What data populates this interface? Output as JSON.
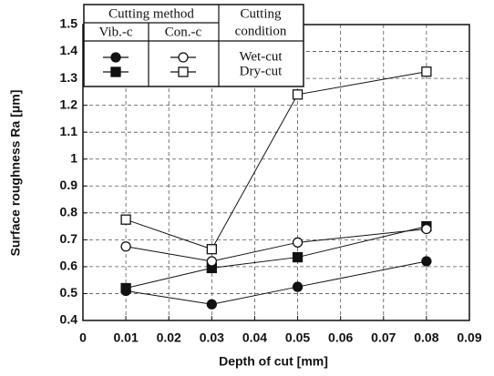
{
  "chart_data": {
    "type": "line",
    "x_label": "Depth of cut   [mm]",
    "y_label": "Surface roughness Ra   [μm]",
    "xlim": [
      0,
      0.09
    ],
    "xticks": [
      0,
      0.01,
      0.02,
      0.03,
      0.04,
      0.05,
      0.06,
      0.07,
      0.08,
      0.09
    ],
    "ylim": [
      0.4,
      1.5
    ],
    "yticks": [
      0.4,
      0.5,
      0.6,
      0.7,
      0.8,
      0.9,
      1,
      1.1,
      1.2,
      1.3,
      1.4,
      1.5
    ],
    "grid": true,
    "legend": {
      "method_header": "Cutting  method",
      "condition_header": [
        "Cutting",
        "condition"
      ],
      "methods": [
        "Vib.-c",
        "Con.-c"
      ],
      "conditions": [
        "Wet-cut",
        "Dry-cut"
      ]
    },
    "series": [
      {
        "color": "#111111",
        "marker": "circle",
        "filled": true,
        "x": [
          0.01,
          0.03,
          0.05,
          0.08
        ],
        "values": [
          0.51,
          0.46,
          0.525,
          0.62
        ]
      },
      {
        "color": "#111111",
        "marker": "square",
        "filled": true,
        "x": [
          0.01,
          0.03,
          0.05,
          0.08
        ],
        "values": [
          0.52,
          0.595,
          0.635,
          0.75
        ]
      },
      {
        "color": "#111111",
        "marker": "circle",
        "filled": false,
        "x": [
          0.01,
          0.03,
          0.05,
          0.08
        ],
        "values": [
          0.675,
          0.62,
          0.69,
          0.74
        ]
      },
      {
        "color": "#111111",
        "marker": "square",
        "filled": false,
        "x": [
          0.01,
          0.03,
          0.05,
          0.08
        ],
        "values": [
          0.775,
          0.665,
          1.24,
          1.325
        ]
      }
    ]
  }
}
